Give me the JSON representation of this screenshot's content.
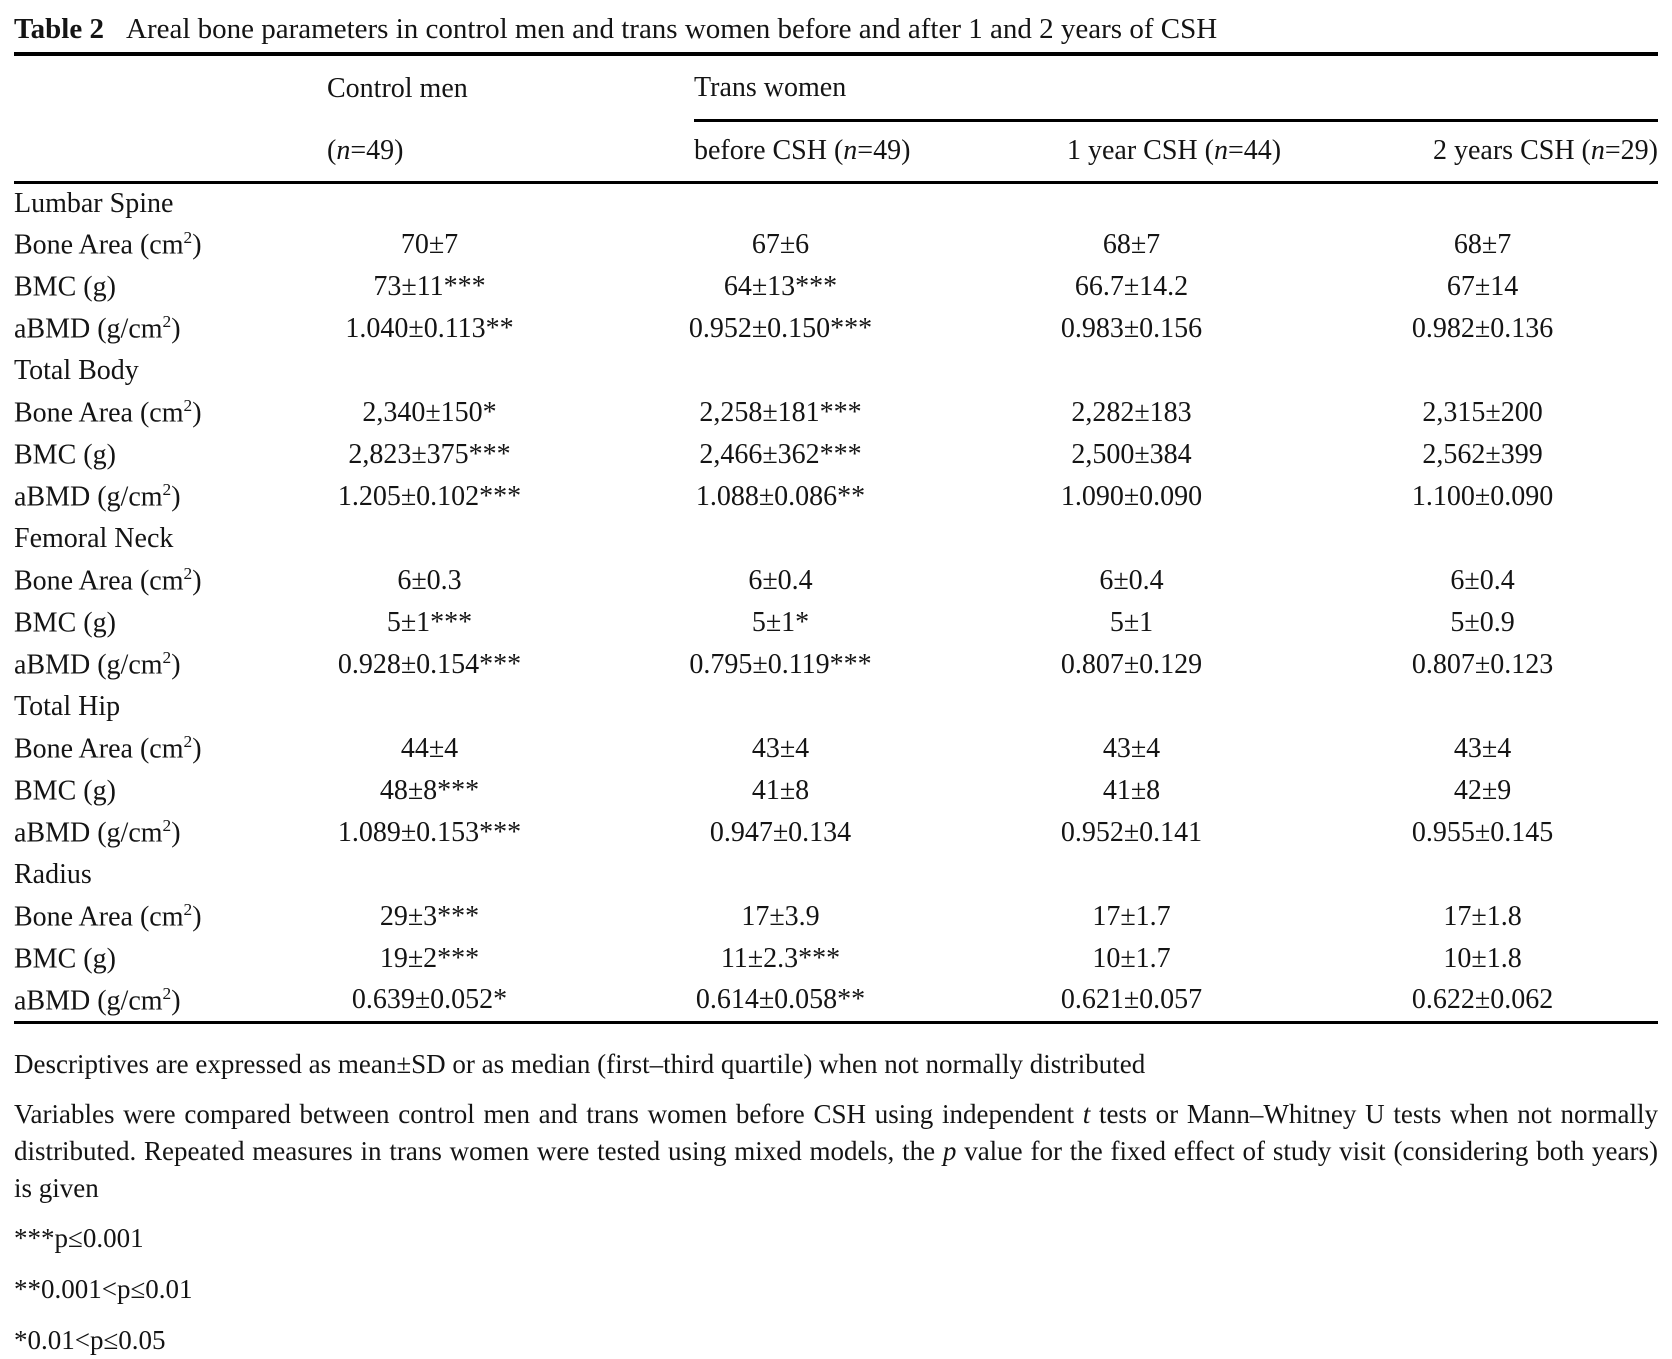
{
  "colors": {
    "text": "#141414",
    "background": "#ffffff",
    "rule": "#000000"
  },
  "title": {
    "label": "Table 2",
    "caption": "Areal bone parameters in control men and trans women before and after 1 and 2 years of CSH"
  },
  "header": {
    "control_men": "Control men",
    "trans_women": "Trans women",
    "sub": [
      {
        "pre": "(",
        "n": "n",
        "post": "=49)"
      },
      {
        "pre": "before CSH (",
        "n": "n",
        "post": "=49)"
      },
      {
        "pre": "1 year CSH (",
        "n": "n",
        "post": "=44)"
      },
      {
        "pre": "2 years CSH (",
        "n": "n",
        "post": "=29)"
      }
    ]
  },
  "sections": [
    {
      "name": "Lumbar Spine",
      "rows": [
        {
          "label": "Bone Area (cm",
          "sup": "2",
          "post": ")",
          "values": [
            "70±7",
            "67±6",
            "68±7",
            "68±7"
          ]
        },
        {
          "label": "BMC (g)",
          "sup": "",
          "post": "",
          "values": [
            "73±11***",
            "64±13***",
            "66.7±14.2",
            "67±14"
          ]
        },
        {
          "label": "aBMD (g/cm",
          "sup": "2",
          "post": ")",
          "values": [
            "1.040±0.113**",
            "0.952±0.150***",
            "0.983±0.156",
            "0.982±0.136"
          ]
        }
      ]
    },
    {
      "name": "Total Body",
      "rows": [
        {
          "label": "Bone Area (cm",
          "sup": "2",
          "post": ")",
          "values": [
            "2,340±150*",
            "2,258±181***",
            "2,282±183",
            "2,315±200"
          ]
        },
        {
          "label": "BMC (g)",
          "sup": "",
          "post": "",
          "values": [
            "2,823±375***",
            "2,466±362***",
            "2,500±384",
            "2,562±399"
          ]
        },
        {
          "label": "aBMD (g/cm",
          "sup": "2",
          "post": ")",
          "values": [
            "1.205±0.102***",
            "1.088±0.086**",
            "1.090±0.090",
            "1.100±0.090"
          ]
        }
      ]
    },
    {
      "name": "Femoral Neck",
      "rows": [
        {
          "label": "Bone Area (cm",
          "sup": "2",
          "post": ")",
          "values": [
            "6±0.3",
            "6±0.4",
            "6±0.4",
            "6±0.4"
          ]
        },
        {
          "label": "BMC (g)",
          "sup": "",
          "post": "",
          "values": [
            "5±1***",
            "5±1*",
            "5±1",
            "5±0.9"
          ]
        },
        {
          "label": "aBMD (g/cm",
          "sup": "2",
          "post": ")",
          "values": [
            "0.928±0.154***",
            "0.795±0.119***",
            "0.807±0.129",
            "0.807±0.123"
          ]
        }
      ]
    },
    {
      "name": "Total Hip",
      "rows": [
        {
          "label": "Bone Area (cm",
          "sup": "2",
          "post": ")",
          "values": [
            "44±4",
            "43±4",
            "43±4",
            "43±4"
          ]
        },
        {
          "label": "BMC (g)",
          "sup": "",
          "post": "",
          "values": [
            "48±8***",
            "41±8",
            "41±8",
            "42±9"
          ]
        },
        {
          "label": "aBMD (g/cm",
          "sup": "2",
          "post": ")",
          "values": [
            "1.089±0.153***",
            "0.947±0.134",
            "0.952±0.141",
            "0.955±0.145"
          ]
        }
      ]
    },
    {
      "name": "Radius",
      "rows": [
        {
          "label": "Bone Area (cm",
          "sup": "2",
          "post": ")",
          "values": [
            "29±3***",
            "17±3.9",
            "17±1.7",
            "17±1.8"
          ]
        },
        {
          "label": "BMC (g)",
          "sup": "",
          "post": "",
          "values": [
            "19±2***",
            "11±2.3***",
            "10±1.7",
            "10±1.8"
          ]
        },
        {
          "label": "aBMD (g/cm",
          "sup": "2",
          "post": ")",
          "values": [
            "0.639±0.052*",
            "0.614±0.058**",
            "0.621±0.057",
            "0.622±0.062"
          ]
        }
      ]
    }
  ],
  "footnotes": {
    "line1": "Descriptives are expressed as mean±SD or as median (first–third quartile) when not normally distributed",
    "line2": {
      "p1": "Variables were compared between control men and trans women before CSH using independent ",
      "i1": "t",
      "p2": " tests or Mann–Whitney U tests when not normally distributed. Repeated measures in trans women were tested using mixed models, the ",
      "i2": "p",
      "p3": " value for the fixed effect of study visit (considering both years) is given"
    },
    "sig1": "***p≤0.001",
    "sig2": "**0.001<p≤0.01",
    "sig3": "*0.01<p≤0.05"
  }
}
